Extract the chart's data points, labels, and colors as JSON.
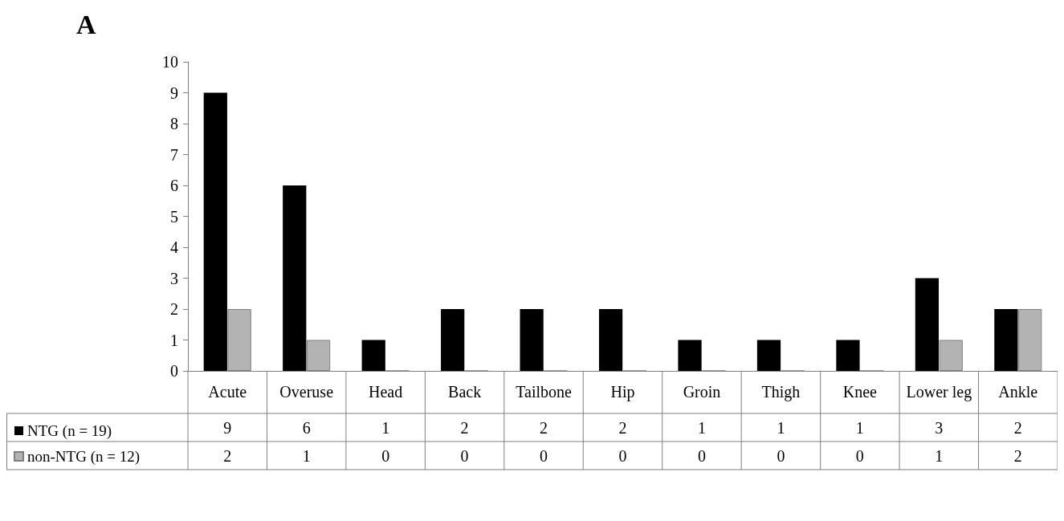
{
  "chart_data": {
    "type": "bar",
    "title": "A",
    "categories": [
      "Acute",
      "Overuse",
      "Head",
      "Back",
      "Tailbone",
      "Hip",
      "Groin",
      "Thigh",
      "Knee",
      "Lower leg",
      "Ankle"
    ],
    "series": [
      {
        "name": "NTG (n = 19)",
        "color": "#000000",
        "values": [
          9,
          6,
          1,
          2,
          2,
          2,
          1,
          1,
          1,
          3,
          2
        ]
      },
      {
        "name": "non-NTG (n = 12)",
        "color": "#b3b3b3",
        "values": [
          2,
          1,
          0,
          0,
          0,
          0,
          0,
          0,
          0,
          1,
          2
        ]
      }
    ],
    "ylim": [
      0,
      10
    ],
    "yticks": [
      0,
      1,
      2,
      3,
      4,
      5,
      6,
      7,
      8,
      9,
      10
    ],
    "grid": false,
    "legend": "bottom left",
    "data_labels": true
  }
}
